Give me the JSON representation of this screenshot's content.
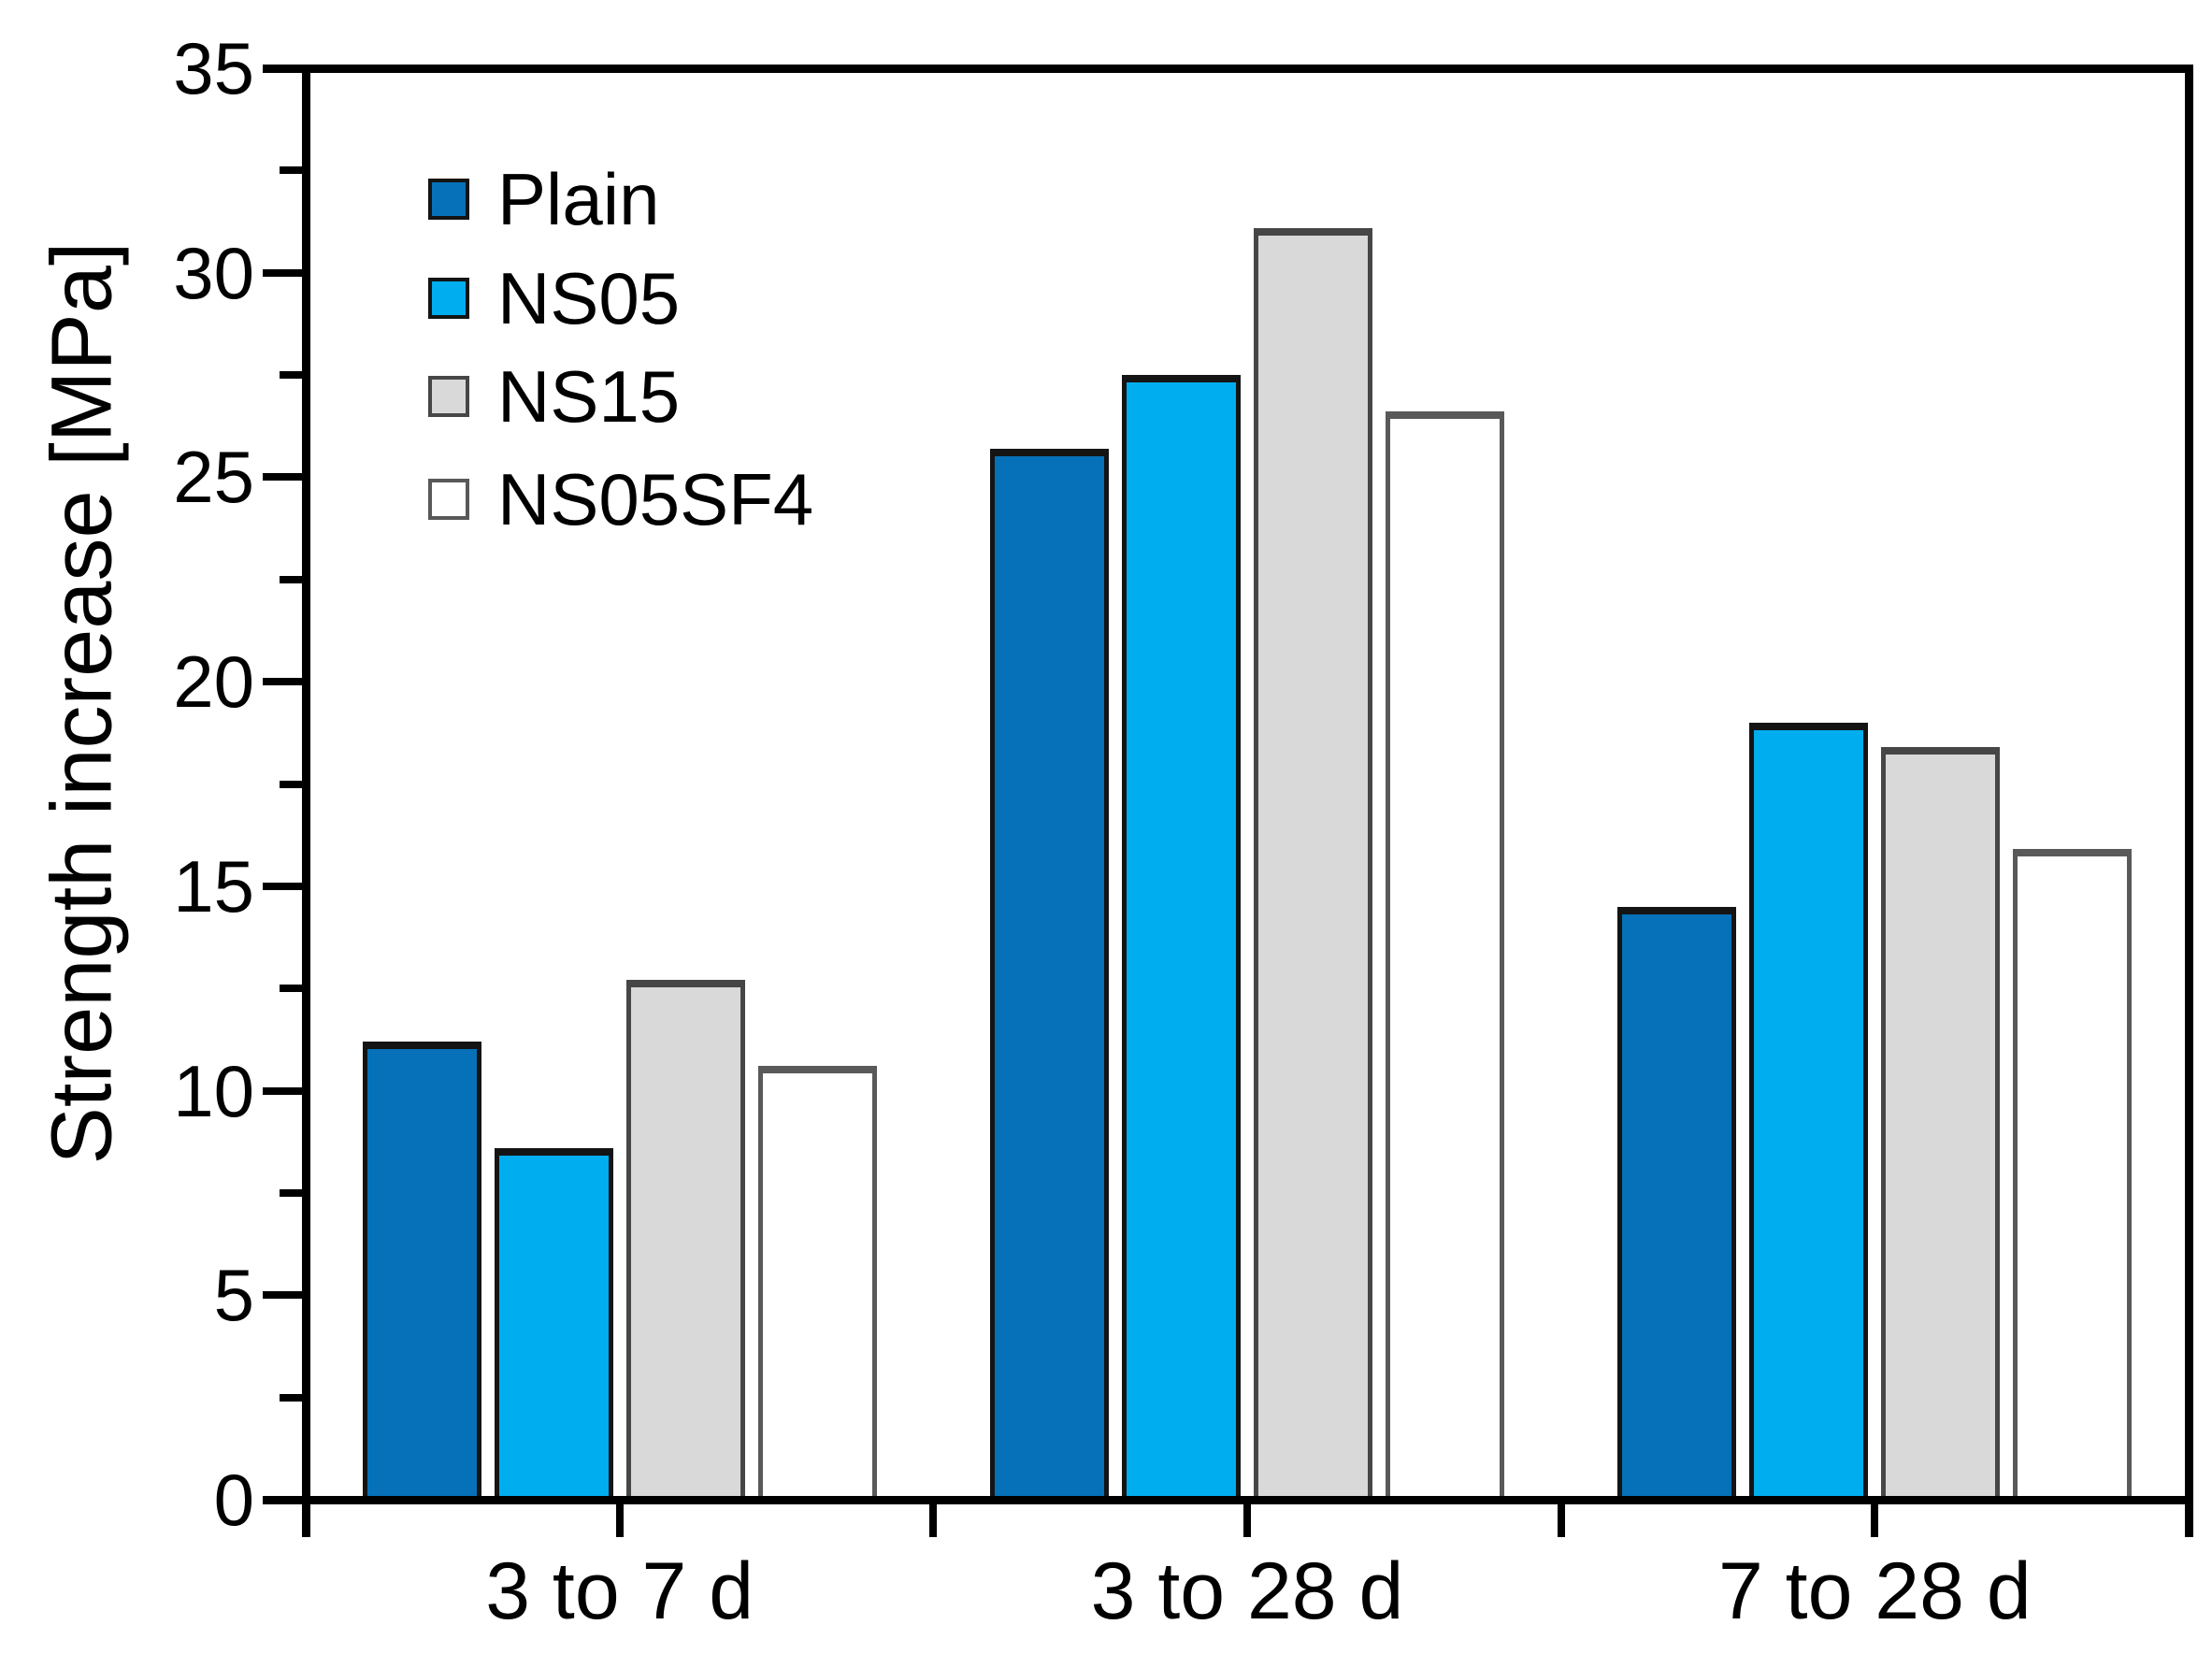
{
  "chart_data": {
    "type": "bar",
    "title": "",
    "xlabel": "",
    "ylabel": "Strength increase [MPa]",
    "ylim": [
      0,
      35
    ],
    "ytick_step": 5,
    "ytick_minor_step": 2.5,
    "ytick_labels": [
      "0",
      "5",
      "10",
      "15",
      "20",
      "25",
      "30",
      "35"
    ],
    "grid": false,
    "legend_position": "inside-top-left",
    "categories": [
      "3 to 7 d",
      "3 to 28 d",
      "7 to 28 d"
    ],
    "series": [
      {
        "name": "Plain",
        "color": "#0671b8",
        "border": "#141414",
        "values": [
          11.2,
          25.7,
          14.5
        ]
      },
      {
        "name": "NS05",
        "color": "#00adee",
        "border": "#141414",
        "values": [
          8.6,
          27.5,
          19.0
        ]
      },
      {
        "name": "NS15",
        "color": "#d9d9d9",
        "border": "#464646",
        "values": [
          12.7,
          31.1,
          18.4
        ]
      },
      {
        "name": "NS05SF4",
        "color": "#ffffff",
        "border": "#595959",
        "values": [
          10.6,
          26.6,
          15.9
        ]
      }
    ]
  }
}
